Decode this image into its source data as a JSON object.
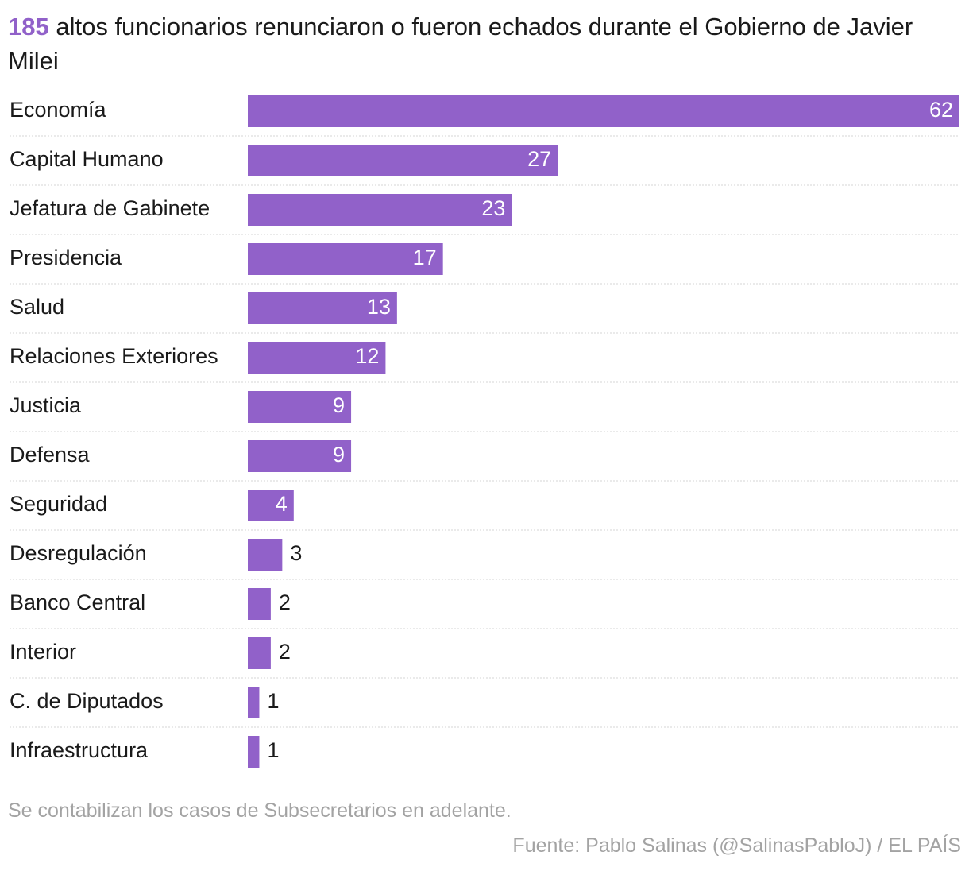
{
  "title": {
    "count": "185",
    "text": " altos funcionarios renunciaron o fueron echados durante el Gobierno de Javier Milei"
  },
  "colors": {
    "bar": "#9161c9",
    "label_inside": "#ffffff",
    "label_outside": "#1a1a1a",
    "gridline": "#d4d4d4"
  },
  "chart_data": {
    "type": "bar",
    "orientation": "horizontal",
    "categories": [
      "Economía",
      "Capital Humano",
      "Jefatura de Gabinete",
      "Presidencia",
      "Salud",
      "Relaciones Exteriores",
      "Justicia",
      "Defensa",
      "Seguridad",
      "Desregulación",
      "Banco Central",
      "Interior",
      "C. de Diputados",
      "Infraestructura"
    ],
    "values": [
      62,
      27,
      23,
      17,
      13,
      12,
      9,
      9,
      4,
      3,
      2,
      2,
      1,
      1
    ],
    "xlim": [
      0,
      62
    ],
    "grid": false,
    "legend": "none"
  },
  "note": "Se contabilizan los casos de Subsecretarios en adelante.",
  "source": "Fuente: Pablo Salinas (@SalinasPabloJ) / EL PAÍS"
}
